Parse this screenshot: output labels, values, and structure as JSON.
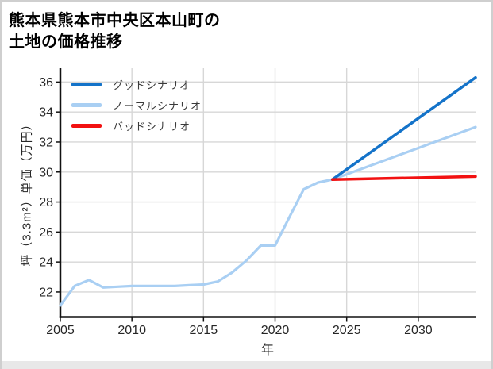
{
  "title": {
    "line1": "熊本県熊本市中央区本山町の",
    "line2": "土地の価格推移"
  },
  "chart_data": {
    "type": "line",
    "title": "熊本県熊本市中央区本山町の土地の価格推移",
    "xlabel": "年",
    "ylabel": "坪（3.3m²）単価（万円）",
    "xlim": [
      2005,
      2034
    ],
    "ylim": [
      20.33,
      36.92
    ],
    "x_ticks": [
      2005,
      2010,
      2015,
      2020,
      2025,
      2030
    ],
    "y_ticks": [
      22,
      24,
      26,
      28,
      30,
      32,
      34,
      36
    ],
    "grid": true,
    "legend_position": "upper-left",
    "colors": {
      "grid": "#d7d7d7",
      "spine": "#111111",
      "tick_label": "#262626"
    },
    "series": [
      {
        "name": "グッドシナリオ",
        "color": "#1473c9",
        "width": 3.5,
        "zindex": 1,
        "x": [
          2024,
          2034
        ],
        "y": [
          29.5,
          36.3
        ]
      },
      {
        "name": "ノーマルシナリオ",
        "color": "#a9cff3",
        "width": 3.2,
        "zindex": 0,
        "x": [
          2005,
          2006,
          2007,
          2008,
          2009,
          2010,
          2011,
          2012,
          2013,
          2014,
          2015,
          2016,
          2017,
          2018,
          2019,
          2020,
          2021,
          2022,
          2023,
          2024,
          2034
        ],
        "y": [
          21.1,
          22.4,
          22.8,
          22.3,
          22.35,
          22.4,
          22.4,
          22.4,
          22.4,
          22.45,
          22.5,
          22.7,
          23.3,
          24.1,
          25.1,
          25.1,
          27.0,
          28.85,
          29.3,
          29.5,
          33.0
        ]
      },
      {
        "name": "バッドシナリオ",
        "color": "#f21111",
        "width": 3.5,
        "zindex": 2,
        "x": [
          2024,
          2034
        ],
        "y": [
          29.5,
          29.7
        ]
      }
    ]
  }
}
